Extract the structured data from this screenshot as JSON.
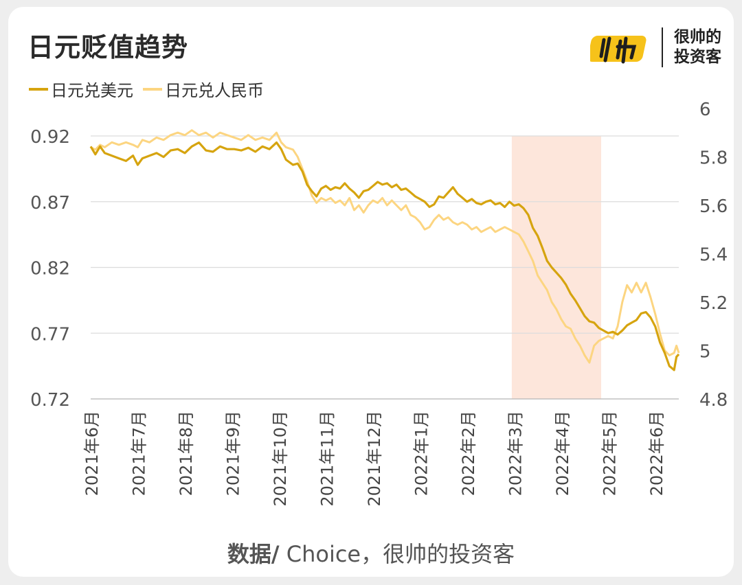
{
  "title": "日元贬值趋势",
  "brand": {
    "line1": "很帅的",
    "line2": "投资客"
  },
  "source": {
    "label": "数据/",
    "text": " Choice，很帅的投资客"
  },
  "colors": {
    "usd": "#d6a40f",
    "cny": "#fcd581",
    "highlight": "#fde6db"
  },
  "chart_data": {
    "type": "line",
    "title": "日元贬值趋势",
    "legend_position": "top-left",
    "grid": true,
    "y_left": {
      "ticks": [
        "0.92",
        "0.87",
        "0.82",
        "0.77",
        "0.72"
      ],
      "range": [
        0.72,
        0.92
      ]
    },
    "y_right": {
      "ticks": [
        "6",
        "5.8",
        "5.6",
        "5.4",
        "5.2",
        "5",
        "4.8"
      ],
      "range": [
        4.8,
        6.0
      ]
    },
    "x_ticks": [
      "2021年6月",
      "2021年7月",
      "2021年8月",
      "2021年9月",
      "2021年10月",
      "2021年11月",
      "2021年12月",
      "2022年1月",
      "2022年2月",
      "2022年3月",
      "2022年4月",
      "2022年5月",
      "2022年6月"
    ],
    "highlight": {
      "from_month": 8.95,
      "to_month": 10.85
    },
    "series": [
      {
        "name": "日元兑美元",
        "axis": "left",
        "points": [
          [
            0.0,
            0.912
          ],
          [
            0.1,
            0.906
          ],
          [
            0.2,
            0.912
          ],
          [
            0.3,
            0.907
          ],
          [
            0.45,
            0.905
          ],
          [
            0.6,
            0.903
          ],
          [
            0.75,
            0.901
          ],
          [
            0.9,
            0.905
          ],
          [
            1.0,
            0.898
          ],
          [
            1.1,
            0.903
          ],
          [
            1.25,
            0.905
          ],
          [
            1.4,
            0.907
          ],
          [
            1.55,
            0.904
          ],
          [
            1.7,
            0.909
          ],
          [
            1.85,
            0.91
          ],
          [
            2.0,
            0.907
          ],
          [
            2.15,
            0.912
          ],
          [
            2.3,
            0.915
          ],
          [
            2.45,
            0.909
          ],
          [
            2.6,
            0.908
          ],
          [
            2.75,
            0.912
          ],
          [
            2.9,
            0.91
          ],
          [
            3.05,
            0.91
          ],
          [
            3.2,
            0.909
          ],
          [
            3.35,
            0.911
          ],
          [
            3.5,
            0.908
          ],
          [
            3.65,
            0.912
          ],
          [
            3.8,
            0.91
          ],
          [
            3.95,
            0.915
          ],
          [
            4.05,
            0.91
          ],
          [
            4.15,
            0.902
          ],
          [
            4.3,
            0.898
          ],
          [
            4.4,
            0.899
          ],
          [
            4.5,
            0.893
          ],
          [
            4.6,
            0.883
          ],
          [
            4.7,
            0.878
          ],
          [
            4.8,
            0.874
          ],
          [
            4.9,
            0.88
          ],
          [
            5.0,
            0.882
          ],
          [
            5.1,
            0.879
          ],
          [
            5.2,
            0.881
          ],
          [
            5.3,
            0.88
          ],
          [
            5.4,
            0.884
          ],
          [
            5.5,
            0.88
          ],
          [
            5.6,
            0.877
          ],
          [
            5.7,
            0.873
          ],
          [
            5.8,
            0.878
          ],
          [
            5.9,
            0.879
          ],
          [
            6.0,
            0.882
          ],
          [
            6.1,
            0.885
          ],
          [
            6.2,
            0.883
          ],
          [
            6.3,
            0.884
          ],
          [
            6.4,
            0.881
          ],
          [
            6.5,
            0.883
          ],
          [
            6.6,
            0.879
          ],
          [
            6.7,
            0.88
          ],
          [
            6.8,
            0.877
          ],
          [
            6.9,
            0.874
          ],
          [
            7.0,
            0.872
          ],
          [
            7.1,
            0.87
          ],
          [
            7.2,
            0.866
          ],
          [
            7.3,
            0.868
          ],
          [
            7.4,
            0.874
          ],
          [
            7.5,
            0.873
          ],
          [
            7.6,
            0.877
          ],
          [
            7.7,
            0.881
          ],
          [
            7.8,
            0.876
          ],
          [
            7.9,
            0.873
          ],
          [
            8.0,
            0.87
          ],
          [
            8.1,
            0.872
          ],
          [
            8.2,
            0.869
          ],
          [
            8.3,
            0.868
          ],
          [
            8.4,
            0.87
          ],
          [
            8.5,
            0.871
          ],
          [
            8.6,
            0.868
          ],
          [
            8.7,
            0.869
          ],
          [
            8.8,
            0.866
          ],
          [
            8.9,
            0.87
          ],
          [
            9.0,
            0.867
          ],
          [
            9.1,
            0.868
          ],
          [
            9.2,
            0.865
          ],
          [
            9.3,
            0.86
          ],
          [
            9.4,
            0.85
          ],
          [
            9.5,
            0.844
          ],
          [
            9.6,
            0.835
          ],
          [
            9.7,
            0.825
          ],
          [
            9.8,
            0.82
          ],
          [
            9.9,
            0.816
          ],
          [
            10.0,
            0.812
          ],
          [
            10.1,
            0.807
          ],
          [
            10.2,
            0.8
          ],
          [
            10.3,
            0.795
          ],
          [
            10.4,
            0.789
          ],
          [
            10.5,
            0.783
          ],
          [
            10.6,
            0.779
          ],
          [
            10.7,
            0.778
          ],
          [
            10.8,
            0.774
          ],
          [
            10.9,
            0.772
          ],
          [
            11.0,
            0.77
          ],
          [
            11.1,
            0.771
          ],
          [
            11.2,
            0.769
          ],
          [
            11.3,
            0.772
          ],
          [
            11.4,
            0.776
          ],
          [
            11.5,
            0.778
          ],
          [
            11.6,
            0.78
          ],
          [
            11.7,
            0.785
          ],
          [
            11.8,
            0.786
          ],
          [
            11.9,
            0.782
          ],
          [
            12.0,
            0.775
          ],
          [
            12.1,
            0.763
          ],
          [
            12.2,
            0.755
          ],
          [
            12.3,
            0.745
          ],
          [
            12.4,
            0.742
          ],
          [
            12.45,
            0.752
          ],
          [
            12.5,
            0.754
          ]
        ]
      },
      {
        "name": "日元兑人民币",
        "axis": "right",
        "points": [
          [
            0.0,
            5.84
          ],
          [
            0.1,
            5.83
          ],
          [
            0.2,
            5.85
          ],
          [
            0.3,
            5.84
          ],
          [
            0.45,
            5.86
          ],
          [
            0.6,
            5.85
          ],
          [
            0.75,
            5.86
          ],
          [
            0.9,
            5.85
          ],
          [
            1.0,
            5.84
          ],
          [
            1.1,
            5.87
          ],
          [
            1.25,
            5.86
          ],
          [
            1.4,
            5.88
          ],
          [
            1.55,
            5.87
          ],
          [
            1.7,
            5.89
          ],
          [
            1.85,
            5.9
          ],
          [
            2.0,
            5.89
          ],
          [
            2.15,
            5.91
          ],
          [
            2.3,
            5.89
          ],
          [
            2.45,
            5.9
          ],
          [
            2.6,
            5.88
          ],
          [
            2.75,
            5.9
          ],
          [
            2.9,
            5.89
          ],
          [
            3.05,
            5.88
          ],
          [
            3.2,
            5.87
          ],
          [
            3.35,
            5.89
          ],
          [
            3.5,
            5.87
          ],
          [
            3.65,
            5.88
          ],
          [
            3.8,
            5.87
          ],
          [
            3.95,
            5.9
          ],
          [
            4.05,
            5.86
          ],
          [
            4.15,
            5.84
          ],
          [
            4.3,
            5.83
          ],
          [
            4.4,
            5.8
          ],
          [
            4.5,
            5.75
          ],
          [
            4.6,
            5.7
          ],
          [
            4.7,
            5.64
          ],
          [
            4.8,
            5.61
          ],
          [
            4.9,
            5.63
          ],
          [
            5.0,
            5.62
          ],
          [
            5.1,
            5.63
          ],
          [
            5.2,
            5.61
          ],
          [
            5.3,
            5.62
          ],
          [
            5.4,
            5.6
          ],
          [
            5.5,
            5.63
          ],
          [
            5.6,
            5.58
          ],
          [
            5.7,
            5.6
          ],
          [
            5.8,
            5.57
          ],
          [
            5.9,
            5.6
          ],
          [
            6.0,
            5.62
          ],
          [
            6.1,
            5.61
          ],
          [
            6.2,
            5.63
          ],
          [
            6.3,
            5.6
          ],
          [
            6.4,
            5.62
          ],
          [
            6.5,
            5.6
          ],
          [
            6.6,
            5.58
          ],
          [
            6.7,
            5.6
          ],
          [
            6.8,
            5.56
          ],
          [
            6.9,
            5.55
          ],
          [
            7.0,
            5.53
          ],
          [
            7.1,
            5.5
          ],
          [
            7.2,
            5.51
          ],
          [
            7.3,
            5.54
          ],
          [
            7.4,
            5.56
          ],
          [
            7.5,
            5.54
          ],
          [
            7.6,
            5.55
          ],
          [
            7.7,
            5.53
          ],
          [
            7.8,
            5.52
          ],
          [
            7.9,
            5.53
          ],
          [
            8.0,
            5.52
          ],
          [
            8.1,
            5.5
          ],
          [
            8.2,
            5.51
          ],
          [
            8.3,
            5.49
          ],
          [
            8.4,
            5.5
          ],
          [
            8.5,
            5.51
          ],
          [
            8.6,
            5.49
          ],
          [
            8.7,
            5.5
          ],
          [
            8.8,
            5.51
          ],
          [
            8.9,
            5.5
          ],
          [
            9.0,
            5.49
          ],
          [
            9.1,
            5.48
          ],
          [
            9.2,
            5.45
          ],
          [
            9.3,
            5.41
          ],
          [
            9.4,
            5.37
          ],
          [
            9.5,
            5.31
          ],
          [
            9.6,
            5.28
          ],
          [
            9.7,
            5.25
          ],
          [
            9.8,
            5.2
          ],
          [
            9.9,
            5.17
          ],
          [
            10.0,
            5.13
          ],
          [
            10.1,
            5.1
          ],
          [
            10.2,
            5.09
          ],
          [
            10.3,
            5.05
          ],
          [
            10.4,
            5.02
          ],
          [
            10.5,
            4.98
          ],
          [
            10.6,
            4.95
          ],
          [
            10.7,
            5.02
          ],
          [
            10.8,
            5.04
          ],
          [
            10.9,
            5.05
          ],
          [
            11.0,
            5.06
          ],
          [
            11.1,
            5.05
          ],
          [
            11.2,
            5.1
          ],
          [
            11.3,
            5.2
          ],
          [
            11.4,
            5.27
          ],
          [
            11.5,
            5.24
          ],
          [
            11.6,
            5.28
          ],
          [
            11.7,
            5.24
          ],
          [
            11.8,
            5.28
          ],
          [
            11.9,
            5.22
          ],
          [
            12.0,
            5.15
          ],
          [
            12.1,
            5.07
          ],
          [
            12.2,
            5.0
          ],
          [
            12.3,
            4.98
          ],
          [
            12.4,
            4.99
          ],
          [
            12.45,
            5.02
          ],
          [
            12.5,
            4.99
          ]
        ]
      }
    ]
  }
}
